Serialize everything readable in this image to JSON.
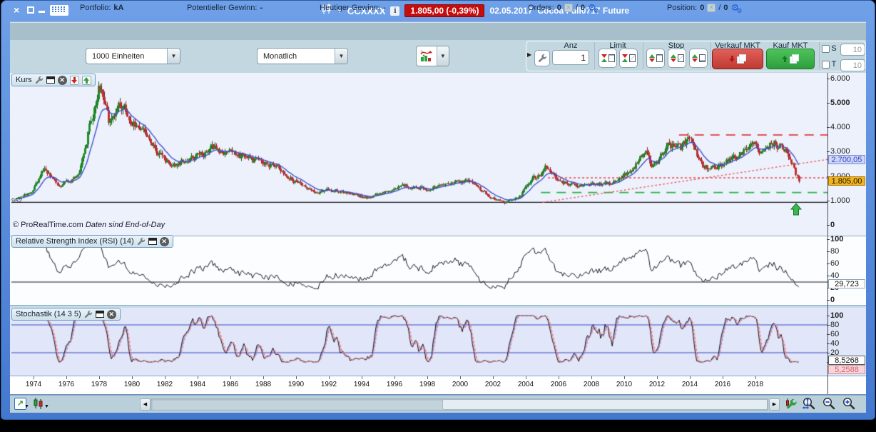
{
  "titlebar": {
    "ticker": "CCXXXX",
    "info_icon": "i",
    "price_badge": "1.805,00 (-0,39%)",
    "date": "02.05.2017",
    "instrument": "Cocoa Full0717 Future"
  },
  "info_row": {
    "portfolio_label": "Portfolio:",
    "portfolio_value": "kA",
    "potential_label": "Potentieller Gewinn:",
    "potential_value": "-",
    "today_label": "Heutiger Gewinn:",
    "today_value": "-",
    "orders_label": "Orders:",
    "orders_value": "0",
    "orders_sep": "/",
    "orders_value2": "0",
    "position_label": "Position:",
    "position_value": "0",
    "position_sep": "/",
    "position_value2": "0"
  },
  "toolbar": {
    "units_dropdown": "1000 Einheiten",
    "timeframe_dropdown": "Monatlich",
    "anz_label": "Anz",
    "anz_value": "1",
    "limit_label": "Limit",
    "stop_label": "Stop",
    "sell_label": "Verkauf MKT",
    "buy_label": "Kauf MKT",
    "s_label": "S",
    "t_label": "T",
    "s_value": "10",
    "t_value": "10"
  },
  "panels": {
    "kurs_title": "Kurs",
    "rsi_title": "Relative Strength Index (RSI) (14)",
    "stoch_title": "Stochastik (14 3 5)",
    "copyright": "© ProRealTime.com",
    "data_note": "Daten sind End-of-Day",
    "left_level_label": "952"
  },
  "value_labels": {
    "resistance_blue": "2.700,05",
    "last_price_orange": "1.805,00",
    "rsi_value": "29,723",
    "stoch_k": "8,5268",
    "stoch_d": "5,2588"
  },
  "axis": {
    "main_ticks": [
      "6.000",
      "5.000",
      "4.000",
      "3.000",
      "2.000",
      "1.000",
      "0"
    ],
    "rsi_ticks": [
      "100",
      "80",
      "60",
      "40",
      "20",
      "0"
    ],
    "stoch_ticks": [
      "100",
      "80",
      "60",
      "40",
      "20",
      "0"
    ],
    "years": [
      "1974",
      "1976",
      "1978",
      "1980",
      "1982",
      "1984",
      "1986",
      "1988",
      "1990",
      "1992",
      "1994",
      "1996",
      "1998",
      "2000",
      "2002",
      "2004",
      "2006",
      "2008",
      "2010",
      "2012",
      "2014",
      "2016",
      "2018"
    ]
  },
  "colors": {
    "badge_red": "#c50d0d",
    "sell_red": "#cf4038",
    "buy_green": "#35a845",
    "candle_up": "#1e8c28",
    "candle_up_edge": "#145f17",
    "candle_down": "#c03030",
    "candle_down_edge": "#8a1d1d",
    "ma_blue": "#3f51cf",
    "trend_red": "#ef5350",
    "dash_red": "#dd1f1f",
    "dash_green": "#28b548",
    "label_orange_bg": "#f2b31c",
    "label_blue_bg": "#ccd6f8",
    "stoch_d_pink": "#e8808e",
    "level_blue": "#3948c8"
  },
  "chart_data": {
    "type": "candlestick",
    "title": "Cocoa Full0717 Future",
    "timeframe": "Monatlich",
    "x_domain": [
      1972.3,
      2019.0
    ],
    "data_start": 1972.6,
    "data_end": 2017.35,
    "ylim": [
      0,
      6200
    ],
    "y_ticks": [
      6000,
      5000,
      4000,
      3000,
      2000,
      1000,
      0
    ],
    "x_year_labels": [
      1974,
      1976,
      1978,
      1980,
      1982,
      1984,
      1986,
      1988,
      1990,
      1992,
      1994,
      1996,
      1998,
      2000,
      2002,
      2004,
      2006,
      2008,
      2010,
      2012,
      2014,
      2016,
      2018
    ],
    "last_price": 1805,
    "price_anchors": [
      [
        1972.6,
        1050
      ],
      [
        1973.5,
        1500
      ],
      [
        1974.2,
        2400
      ],
      [
        1975.0,
        1650
      ],
      [
        1976.2,
        2050
      ],
      [
        1977.3,
        5850
      ],
      [
        1977.9,
        4100
      ],
      [
        1978.6,
        4850
      ],
      [
        1979.3,
        4250
      ],
      [
        1980.2,
        3350
      ],
      [
        1981.3,
        2500
      ],
      [
        1982.4,
        2750
      ],
      [
        1983.9,
        3150
      ],
      [
        1984.8,
        2950
      ],
      [
        1986.0,
        2650
      ],
      [
        1987.3,
        2450
      ],
      [
        1988.4,
        1850
      ],
      [
        1989.6,
        1350
      ],
      [
        1990.6,
        1500
      ],
      [
        1991.7,
        1300
      ],
      [
        1992.7,
        1150
      ],
      [
        1993.8,
        1450
      ],
      [
        1994.8,
        1600
      ],
      [
        1996.0,
        1500
      ],
      [
        1997.3,
        1800
      ],
      [
        1998.3,
        1850
      ],
      [
        1999.5,
        1250
      ],
      [
        2000.5,
        950
      ],
      [
        2001.3,
        1150
      ],
      [
        2002.2,
        1900
      ],
      [
        2002.9,
        2350
      ],
      [
        2003.6,
        1750
      ],
      [
        2004.6,
        1700
      ],
      [
        2005.6,
        1650
      ],
      [
        2006.6,
        1750
      ],
      [
        2007.6,
        2150
      ],
      [
        2008.6,
        2950
      ],
      [
        2009.0,
        2350
      ],
      [
        2009.9,
        3350
      ],
      [
        2010.6,
        3150
      ],
      [
        2011.1,
        3650
      ],
      [
        2011.9,
        2300
      ],
      [
        2012.6,
        2450
      ],
      [
        2013.6,
        2750
      ],
      [
        2014.8,
        3300
      ],
      [
        2015.3,
        3000
      ],
      [
        2015.9,
        3400
      ],
      [
        2016.6,
        3150
      ],
      [
        2016.95,
        2650
      ],
      [
        2017.35,
        1805
      ]
    ],
    "overlays": {
      "ma_period": 12,
      "black_line_level": 952,
      "green_dash_level": 1350,
      "green_dash_from": 2002.6,
      "red_longdash_level": 3700,
      "red_longdash_from": 2010.5,
      "red_finedash_level": 1950,
      "red_finedash_from": 2003.0,
      "trendline_from": [
        2002.7,
        950
      ],
      "trendline_to": [
        2019.0,
        2700
      ],
      "resistance_label_value": 2700.05
    },
    "rsi": {
      "period": 14,
      "last_value": 29.723,
      "level_line": 30,
      "y_ticks": [
        100,
        80,
        60,
        40,
        20,
        0
      ]
    },
    "stoch": {
      "periods": [
        14,
        3,
        5
      ],
      "k_last": 8.5268,
      "d_last": 5.2588,
      "level_lines": [
        80,
        20
      ],
      "y_ticks": [
        100,
        80,
        60,
        40,
        20,
        0
      ]
    }
  }
}
